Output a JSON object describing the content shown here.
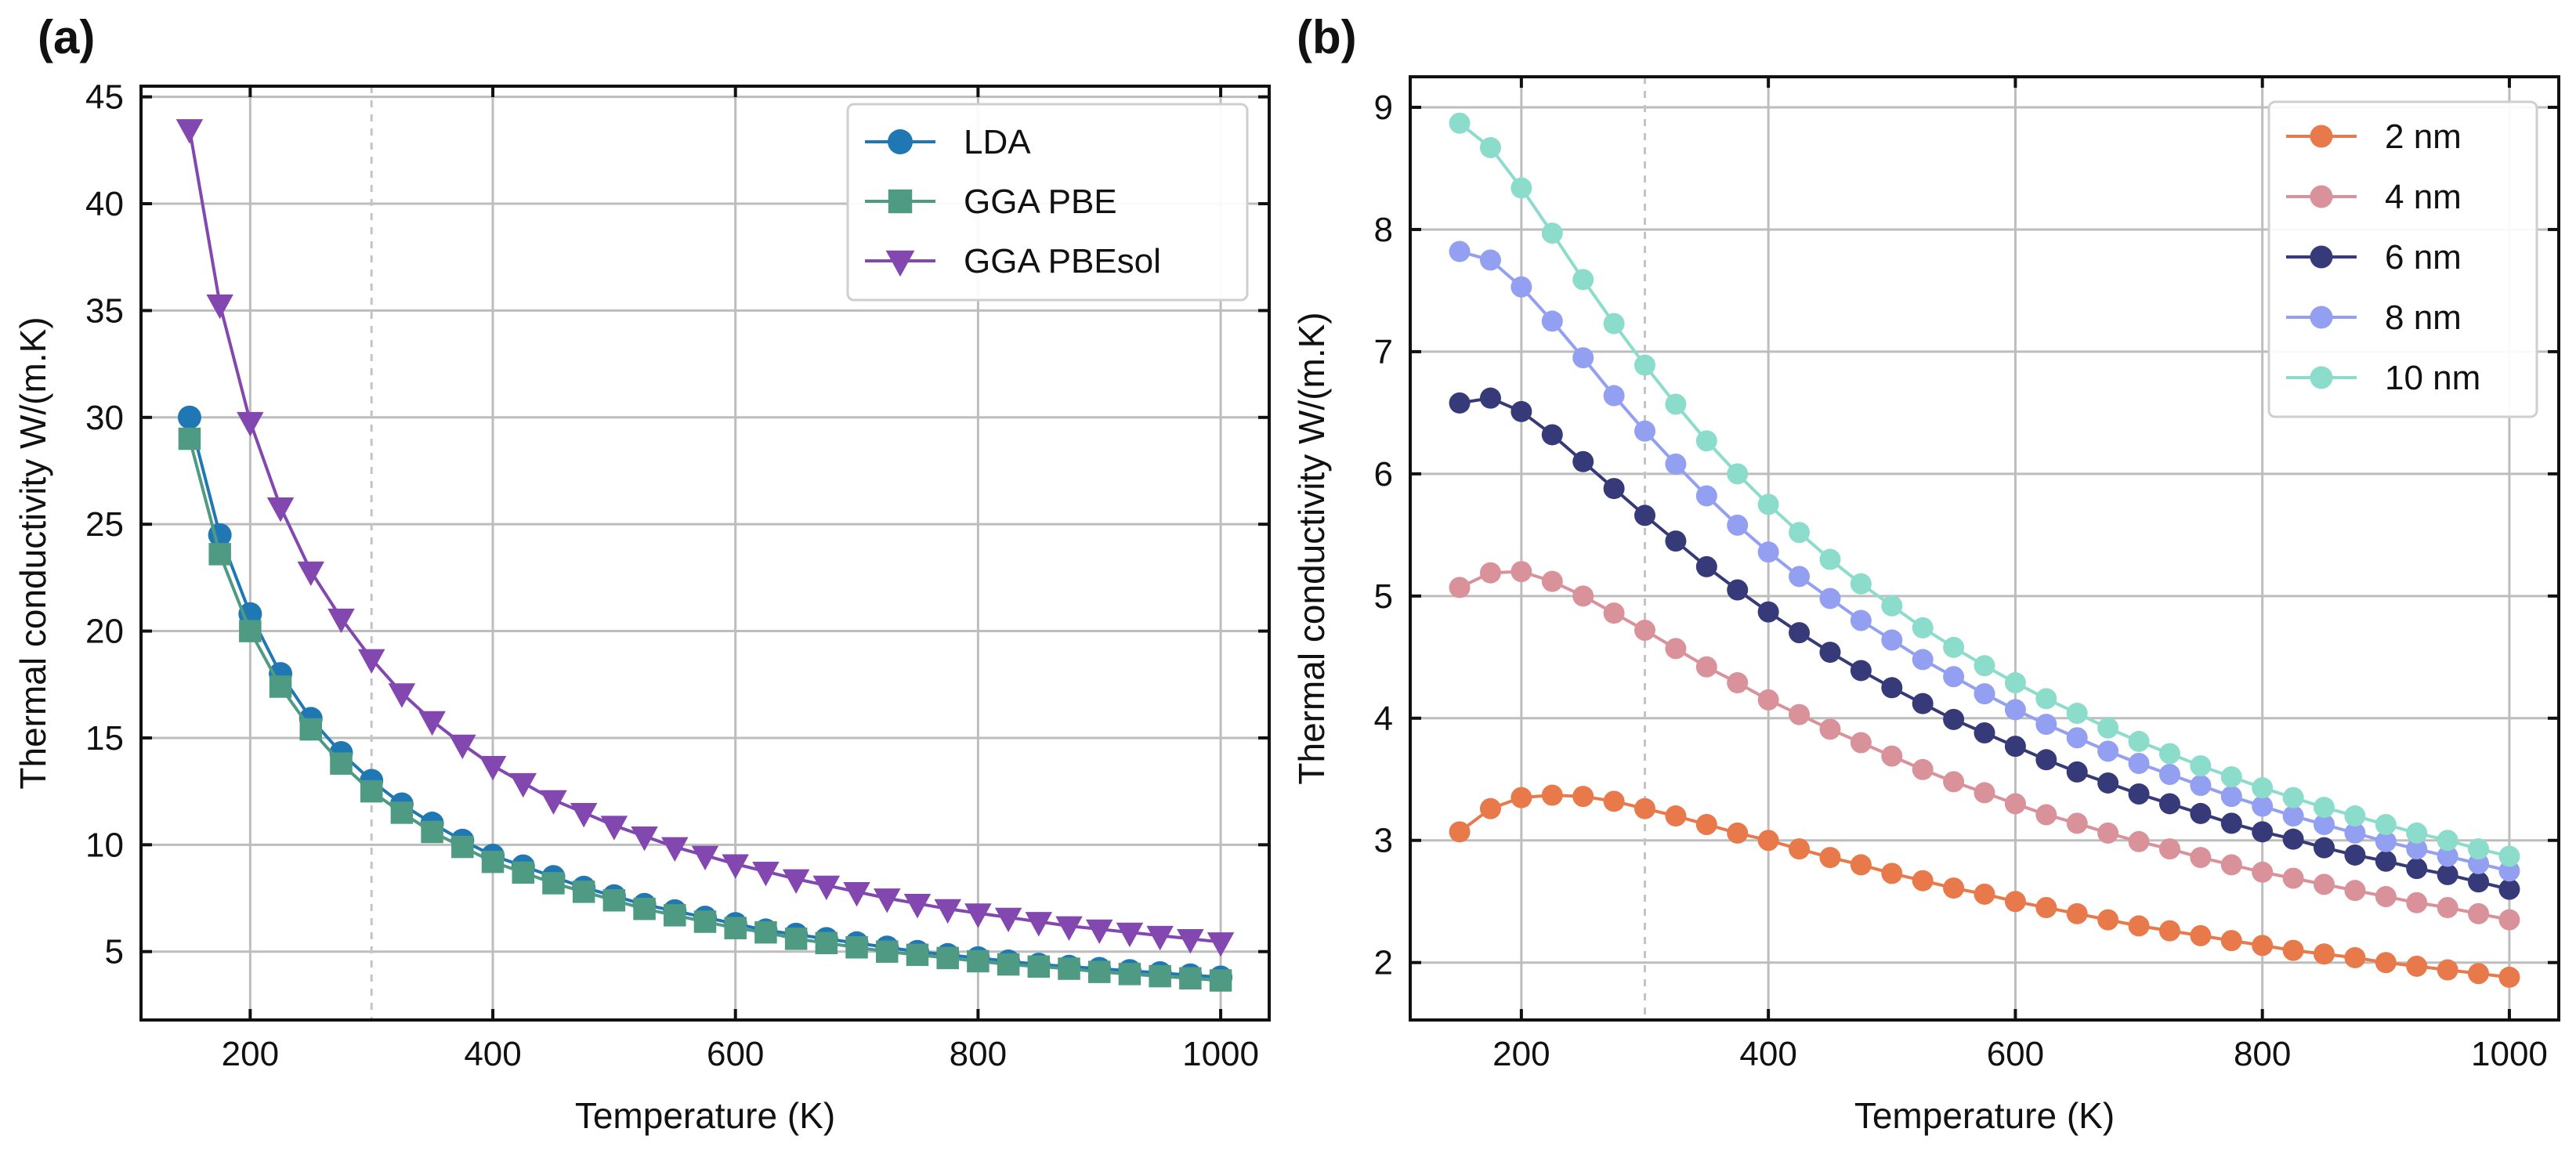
{
  "chart_data": [
    {
      "type": "line",
      "panel_label": "(a)",
      "title": "",
      "xlabel": "Temperature (K)",
      "ylabel": "Thermal conductivity W/(m.K)",
      "xlim": [
        110,
        1040
      ],
      "ylim": [
        1.8,
        45.5
      ],
      "xticks": [
        200,
        400,
        600,
        800,
        1000
      ],
      "yticks": [
        5,
        10,
        15,
        20,
        25,
        30,
        35,
        40,
        45
      ],
      "xtick_labels": [
        "200",
        "400",
        "600",
        "800",
        "1000"
      ],
      "ytick_labels": [
        "5",
        "10",
        "15",
        "20",
        "25",
        "30",
        "35",
        "40",
        "45"
      ],
      "grid": true,
      "reference_line_x": 300,
      "legend_position": "top-right",
      "x": [
        150,
        175,
        200,
        225,
        250,
        275,
        300,
        325,
        350,
        375,
        400,
        425,
        450,
        475,
        500,
        525,
        550,
        575,
        600,
        625,
        650,
        675,
        700,
        725,
        750,
        775,
        800,
        825,
        850,
        875,
        900,
        925,
        950,
        975,
        1000
      ],
      "series": [
        {
          "name": "LDA",
          "color": "#1f77b4",
          "marker": "circle",
          "values": [
            30.0,
            24.5,
            20.8,
            18.0,
            15.9,
            14.3,
            13.0,
            11.9,
            11.0,
            10.2,
            9.5,
            9.0,
            8.5,
            8.0,
            7.6,
            7.2,
            6.9,
            6.6,
            6.3,
            6.0,
            5.8,
            5.6,
            5.4,
            5.2,
            5.0,
            4.85,
            4.7,
            4.55,
            4.4,
            4.3,
            4.2,
            4.1,
            4.0,
            3.9,
            3.8
          ]
        },
        {
          "name": "GGA PBE",
          "color": "#4e9a83",
          "marker": "square",
          "values": [
            29.0,
            23.6,
            20.0,
            17.4,
            15.4,
            13.8,
            12.5,
            11.5,
            10.6,
            9.9,
            9.2,
            8.7,
            8.2,
            7.8,
            7.4,
            7.0,
            6.7,
            6.4,
            6.1,
            5.9,
            5.6,
            5.4,
            5.2,
            5.0,
            4.85,
            4.7,
            4.55,
            4.4,
            4.3,
            4.2,
            4.05,
            3.95,
            3.85,
            3.75,
            3.65
          ]
        },
        {
          "name": "GGA PBEsol",
          "color": "#8347b0",
          "marker": "triangle-down",
          "values": [
            43.5,
            35.3,
            29.8,
            25.8,
            22.8,
            20.6,
            18.7,
            17.1,
            15.8,
            14.7,
            13.7,
            12.9,
            12.1,
            11.5,
            10.9,
            10.4,
            9.9,
            9.5,
            9.1,
            8.75,
            8.4,
            8.1,
            7.8,
            7.5,
            7.25,
            7.0,
            6.8,
            6.6,
            6.4,
            6.2,
            6.05,
            5.9,
            5.75,
            5.6,
            5.45
          ]
        }
      ]
    },
    {
      "type": "line",
      "panel_label": "(b)",
      "title": "",
      "xlabel": "Temperature (K)",
      "ylabel": "Thermal conductivity W/(m.K)",
      "xlim": [
        110,
        1040
      ],
      "ylim": [
        1.53,
        9.25
      ],
      "xticks": [
        200,
        400,
        600,
        800,
        1000
      ],
      "yticks": [
        2,
        3,
        4,
        5,
        6,
        7,
        8,
        9
      ],
      "xtick_labels": [
        "200",
        "400",
        "600",
        "800",
        "1000"
      ],
      "ytick_labels": [
        "2",
        "3",
        "4",
        "5",
        "6",
        "7",
        "8",
        "9"
      ],
      "grid": true,
      "reference_line_x": 300,
      "legend_position": "top-right",
      "x": [
        150,
        175,
        200,
        225,
        250,
        275,
        300,
        325,
        350,
        375,
        400,
        425,
        450,
        475,
        500,
        525,
        550,
        575,
        600,
        625,
        650,
        675,
        700,
        725,
        750,
        775,
        800,
        825,
        850,
        875,
        900,
        925,
        950,
        975,
        1000
      ],
      "series": [
        {
          "name": "2 nm",
          "color": "#e8794a",
          "marker": "circle",
          "values": [
            3.07,
            3.26,
            3.35,
            3.37,
            3.36,
            3.32,
            3.26,
            3.2,
            3.13,
            3.06,
            3.0,
            2.93,
            2.86,
            2.8,
            2.73,
            2.67,
            2.61,
            2.56,
            2.5,
            2.45,
            2.4,
            2.35,
            2.3,
            2.26,
            2.22,
            2.18,
            2.14,
            2.1,
            2.07,
            2.04,
            2.0,
            1.97,
            1.94,
            1.91,
            1.88
          ]
        },
        {
          "name": "4 nm",
          "color": "#d9929a",
          "marker": "circle",
          "values": [
            5.07,
            5.19,
            5.2,
            5.12,
            5.0,
            4.86,
            4.72,
            4.57,
            4.42,
            4.29,
            4.15,
            4.03,
            3.91,
            3.8,
            3.69,
            3.58,
            3.48,
            3.39,
            3.3,
            3.21,
            3.14,
            3.06,
            2.99,
            2.93,
            2.86,
            2.8,
            2.74,
            2.69,
            2.64,
            2.59,
            2.54,
            2.49,
            2.45,
            2.4,
            2.35
          ]
        },
        {
          "name": "6 nm",
          "color": "#373a78",
          "marker": "circle",
          "values": [
            6.58,
            6.62,
            6.51,
            6.32,
            6.1,
            5.88,
            5.66,
            5.45,
            5.24,
            5.05,
            4.87,
            4.7,
            4.54,
            4.39,
            4.25,
            4.12,
            3.99,
            3.88,
            3.77,
            3.66,
            3.56,
            3.47,
            3.38,
            3.3,
            3.22,
            3.14,
            3.07,
            3.01,
            2.94,
            2.88,
            2.83,
            2.77,
            2.72,
            2.66,
            2.6
          ]
        },
        {
          "name": "8 nm",
          "color": "#939ff0",
          "marker": "circle",
          "values": [
            7.82,
            7.75,
            7.53,
            7.25,
            6.95,
            6.64,
            6.35,
            6.08,
            5.82,
            5.58,
            5.36,
            5.16,
            4.98,
            4.8,
            4.64,
            4.48,
            4.34,
            4.2,
            4.07,
            3.95,
            3.84,
            3.73,
            3.63,
            3.54,
            3.45,
            3.36,
            3.28,
            3.2,
            3.13,
            3.06,
            2.99,
            2.93,
            2.87,
            2.81,
            2.75
          ]
        },
        {
          "name": "10 nm",
          "color": "#8bdccb",
          "marker": "circle",
          "values": [
            8.87,
            8.67,
            8.34,
            7.97,
            7.59,
            7.23,
            6.89,
            6.57,
            6.27,
            6.0,
            5.75,
            5.52,
            5.3,
            5.1,
            4.92,
            4.74,
            4.58,
            4.43,
            4.29,
            4.16,
            4.04,
            3.92,
            3.81,
            3.71,
            3.61,
            3.52,
            3.43,
            3.35,
            3.27,
            3.2,
            3.13,
            3.06,
            3.0,
            2.93,
            2.87
          ]
        }
      ]
    }
  ]
}
